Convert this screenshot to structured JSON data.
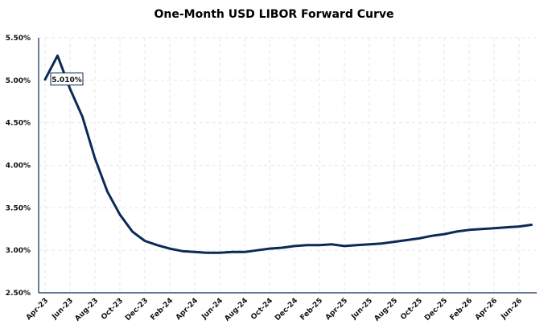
{
  "chart_data": {
    "type": "line",
    "title": "One-Month USD LIBOR Forward Curve",
    "xlabel": "",
    "ylabel": "",
    "ylim": [
      2.5,
      5.5
    ],
    "y_ticks": [
      "2.50%",
      "3.00%",
      "3.50%",
      "4.00%",
      "4.50%",
      "5.00%",
      "5.50%"
    ],
    "x_tick_labels": [
      "Apr-23",
      "Jun-23",
      "Aug-23",
      "Oct-23",
      "Dec-23",
      "Feb-24",
      "Apr-24",
      "Jun-24",
      "Aug-24",
      "Oct-24",
      "Dec-24",
      "Feb-25",
      "Apr-25",
      "Jun-25",
      "Aug-25",
      "Oct-25",
      "Dec-25",
      "Feb-26",
      "Apr-26",
      "Jun-26"
    ],
    "grid": true,
    "legend": "none",
    "line_color": "#0b2a55",
    "annotation": {
      "text": "5.010%",
      "x": "Apr-23",
      "y": 5.01
    },
    "series": [
      {
        "x": [
          "Apr-23",
          "May-23",
          "Jun-23",
          "Jul-23",
          "Aug-23",
          "Sep-23",
          "Oct-23",
          "Nov-23",
          "Dec-23",
          "Jan-24",
          "Feb-24",
          "Mar-24",
          "Apr-24",
          "May-24",
          "Jun-24",
          "Jul-24",
          "Aug-24",
          "Sep-24",
          "Oct-24",
          "Nov-24",
          "Dec-24",
          "Jan-25",
          "Feb-25",
          "Mar-25",
          "Apr-25",
          "May-25",
          "Jun-25",
          "Jul-25",
          "Aug-25",
          "Sep-25",
          "Oct-25",
          "Nov-25",
          "Dec-25",
          "Jan-26",
          "Feb-26",
          "Mar-26",
          "Apr-26",
          "May-26",
          "Jun-26",
          "Jul-26"
        ],
        "values": [
          5.01,
          5.29,
          4.9,
          4.57,
          4.08,
          3.69,
          3.42,
          3.22,
          3.11,
          3.06,
          3.02,
          2.99,
          2.98,
          2.97,
          2.97,
          2.98,
          2.98,
          3.0,
          3.02,
          3.03,
          3.05,
          3.06,
          3.06,
          3.07,
          3.05,
          3.06,
          3.07,
          3.08,
          3.1,
          3.12,
          3.14,
          3.17,
          3.19,
          3.22,
          3.24,
          3.25,
          3.26,
          3.27,
          3.28,
          3.3
        ]
      }
    ]
  }
}
